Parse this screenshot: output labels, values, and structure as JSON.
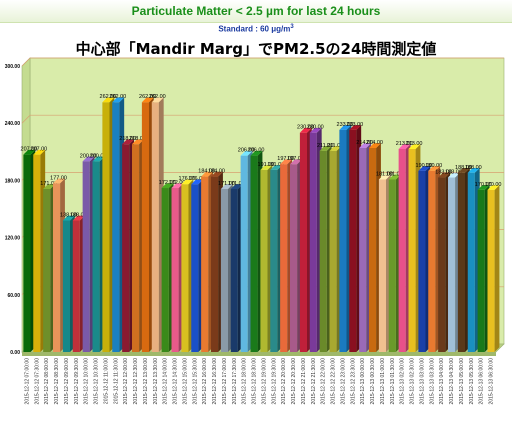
{
  "header": {
    "title": "Particulate Matter < 2.5 µm for last 24 hours"
  },
  "standard": {
    "label": "Standard : 60 μg/m",
    "sup": "3"
  },
  "chart_data": {
    "type": "bar",
    "title": "中心部「Mandir Marg」でPM2.5の24時間測定値",
    "ylim": [
      0,
      300
    ],
    "yticks": [
      {
        "value": 0,
        "label": "0.00"
      },
      {
        "value": 60,
        "label": "60.00"
      },
      {
        "value": 120,
        "label": "120.00"
      },
      {
        "value": 180,
        "label": "180.00"
      },
      {
        "value": 240,
        "label": "240.00"
      },
      {
        "value": 300,
        "label": "300.00"
      }
    ],
    "grid": true,
    "background_color": "#d9ecaa",
    "categories": [
      "2015-12-12 07:00:00",
      "2015-12-12 07:30:00",
      "2015-12-12 08:00:00",
      "2015-12-12 08:30:00",
      "2015-12-12 09:00:00",
      "2015-12-12 09:30:00",
      "2015-12-12 10:00:00",
      "2015-12-12 10:30:00",
      "2015-12-12 11:00:00",
      "2015-12-12 11:30:00",
      "2015-12-12 12:00:00",
      "2015-12-12 12:30:00",
      "2015-12-12 13:00:00",
      "2015-12-12 13:30:00",
      "2015-12-12 14:00:00",
      "2015-12-12 14:30:00",
      "2015-12-12 15:00:00",
      "2015-12-12 15:30:00",
      "2015-12-12 16:00:00",
      "2015-12-12 16:30:00",
      "2015-12-12 17:00:00",
      "2015-12-12 17:30:00",
      "2015-12-12 18:00:00",
      "2015-12-12 18:30:00",
      "2015-12-12 19:00:00",
      "2015-12-12 19:30:00",
      "2015-12-12 20:00:00",
      "2015-12-12 20:30:00",
      "2015-12-12 21:00:00",
      "2015-12-12 21:30:00",
      "2015-12-12 22:00:00",
      "2015-12-12 22:30:00",
      "2015-12-12 23:00:00",
      "2015-12-12 23:30:00",
      "2015-12-13 00:00:00",
      "2015-12-13 00:30:00",
      "2015-12-13 01:00:00",
      "2015-12-13 01:30:00",
      "2015-12-13 02:00:00",
      "2015-12-13 02:30:00",
      "2015-12-13 03:00:00",
      "2015-12-13 03:30:00",
      "2015-12-13 04:00:00",
      "2015-12-13 04:30:00",
      "2015-12-13 05:00:00",
      "2015-12-13 05:30:00",
      "2015-12-13 06:00:00",
      "2015-12-13 06:30:00"
    ],
    "values": [
      207,
      207,
      171,
      177,
      138,
      138,
      200,
      200,
      262,
      262,
      218,
      218,
      262,
      262,
      172,
      172,
      176,
      176,
      184,
      184,
      171,
      171,
      206,
      206,
      191,
      191,
      197,
      197,
      230,
      230,
      211,
      211,
      233,
      233,
      214,
      214,
      181,
      181,
      213,
      213,
      190,
      190,
      183,
      183,
      188,
      188,
      170,
      170
    ],
    "labels": [
      "207.00",
      "207.00",
      "171.00",
      "177.00",
      "138.00",
      "138.00",
      "200.00",
      "200.00",
      "262.00",
      "262.00",
      "218.00",
      "218.00",
      "262.00",
      "262.00",
      "172.00",
      "172.00",
      "176.00",
      "176.00",
      "184.00",
      "184.00",
      "171.00",
      "171.00",
      "206.00",
      "206.00",
      "191.00",
      "191.00",
      "197.00",
      "197.00",
      "230.00",
      "230.00",
      "211.00",
      "211.00",
      "233.00",
      "233.00",
      "214.00",
      "214.00",
      "181.00",
      "181.00",
      "213.00",
      "213.00",
      "190.00",
      "190.00",
      "183.00",
      "183.00",
      "188.00",
      "188.00",
      "170.00",
      "170.00"
    ],
    "colors": [
      "#0a6a0a",
      "#d9b00a",
      "#6f8f2a",
      "#e8945a",
      "#15888a",
      "#c0303a",
      "#7a5aa8",
      "#1a8a8a",
      "#c8b00a",
      "#1a80c0",
      "#8a1a30",
      "#d07020",
      "#d86a10",
      "#e8b080",
      "#3a8a1a",
      "#e85a8a",
      "#d8c020",
      "#1a50c8",
      "#e87a30",
      "#7a3a1a",
      "#8a9aa8",
      "#1a3a6a",
      "#60b8e0",
      "#1a7a1a",
      "#b0b830",
      "#2a8a8a",
      "#e86a3a",
      "#a85a8a",
      "#c0203a",
      "#7a3a9a",
      "#6a8a2a",
      "#a8a830",
      "#1a7ac0",
      "#8a1020",
      "#9a6ab8",
      "#c86a10",
      "#f0c090",
      "#6a9a2a",
      "#e8508a",
      "#e8c020",
      "#1a40a8",
      "#e87a30",
      "#6a3a1a",
      "#a0c0d8",
      "#5a3a1a",
      "#1a90c0",
      "#1a7a1a",
      "#e8c020"
    ]
  }
}
